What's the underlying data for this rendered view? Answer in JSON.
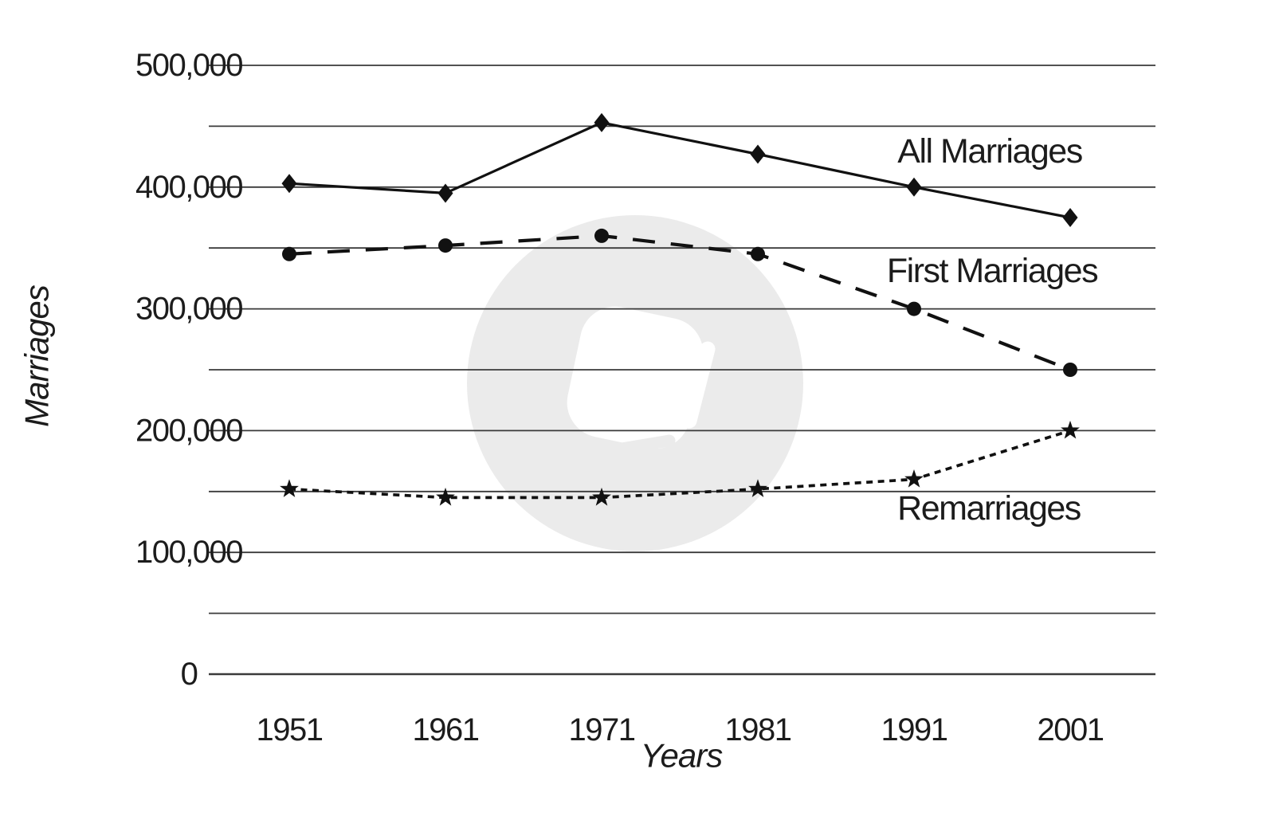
{
  "page": {
    "background": "#ffffff",
    "text_color": "#1c1c1c",
    "gridline_color": "#3a3a3a"
  },
  "chart_data": {
    "type": "line",
    "title": "",
    "xlabel": "Years",
    "ylabel": "Marriages",
    "categories": [
      "1951",
      "1961",
      "1971",
      "1981",
      "1991",
      "2001"
    ],
    "ylim": [
      0,
      500000
    ],
    "gridline_step": 50000,
    "grid": "horizontal",
    "legend_position": "inline-annotations",
    "ytick_labels": [
      {
        "value": 0,
        "label": "0"
      },
      {
        "value": 100000,
        "label": "100,000"
      },
      {
        "value": 200000,
        "label": "200,000"
      },
      {
        "value": 300000,
        "label": "300,000"
      },
      {
        "value": 400000,
        "label": "400,000"
      },
      {
        "value": 500000,
        "label": "500,000"
      }
    ],
    "series": [
      {
        "name": "All Marriages",
        "line_style": "solid",
        "marker": "diamond",
        "color": "#111111",
        "values": [
          403000,
          395000,
          453000,
          427000,
          400000,
          375000
        ]
      },
      {
        "name": "First Marriages",
        "line_style": "long-dash",
        "marker": "circle",
        "color": "#111111",
        "values": [
          345000,
          352000,
          360000,
          345000,
          300000,
          250000
        ]
      },
      {
        "name": "Remarriages",
        "line_style": "dotted",
        "marker": "star",
        "color": "#111111",
        "values": [
          152000,
          145000,
          145000,
          152000,
          160000,
          200000
        ]
      }
    ],
    "watermark": {
      "shape": "circle-logo",
      "circle_color": "#ebebeb",
      "logo_color": "#ffffff"
    }
  }
}
